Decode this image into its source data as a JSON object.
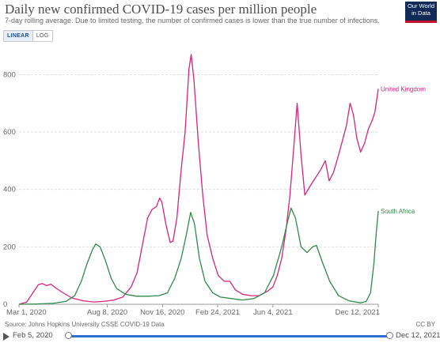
{
  "title": "Daily new confirmed COVID-19 cases per million people",
  "subtitle": "7-day rolling average. Due to limited testing, the number of confirmed cases is lower than the true number of infections.",
  "logo": {
    "line1": "Our World",
    "line2": "in Data"
  },
  "scale_toggle": {
    "linear": "LINEAR",
    "log": "LOG",
    "active": "linear"
  },
  "footer": {
    "source": "Source: Johns Hopkins University CSSE COVID-19 Data",
    "license": "CC BY"
  },
  "timeline": {
    "start_label": "Feb 5, 2020",
    "end_label": "Dec 12, 2021",
    "start_fraction": 0.0,
    "end_fraction": 1.0
  },
  "colors": {
    "uk": "#d6247a",
    "sa": "#2f8a4a",
    "grid": "#dddddd",
    "axis_text": "#666666",
    "timeline": "#2c6fd1"
  },
  "chart_data": {
    "type": "line",
    "x_axis": {
      "type": "date",
      "range": [
        "2020-03-01",
        "2021-12-12"
      ],
      "ticks": [
        "Mar 1, 2020",
        "Aug 8, 2020",
        "Nov 16, 2020",
        "Feb 24, 2021",
        "Jun 4, 2021",
        "Dec 12, 2021"
      ]
    },
    "y_axis": {
      "range": [
        0,
        900
      ],
      "ticks": [
        0,
        200,
        400,
        600,
        800
      ]
    },
    "grid": true,
    "legend": "labels at line ends (right)",
    "series": [
      {
        "name": "United Kingdom",
        "color": "#d6247a",
        "points": [
          [
            "2020-03-01",
            0
          ],
          [
            "2020-03-15",
            8
          ],
          [
            "2020-03-28",
            45
          ],
          [
            "2020-04-05",
            68
          ],
          [
            "2020-04-12",
            72
          ],
          [
            "2020-04-20",
            65
          ],
          [
            "2020-04-28",
            70
          ],
          [
            "2020-05-08",
            55
          ],
          [
            "2020-05-20",
            40
          ],
          [
            "2020-06-05",
            22
          ],
          [
            "2020-06-25",
            12
          ],
          [
            "2020-07-15",
            8
          ],
          [
            "2020-08-01",
            10
          ],
          [
            "2020-08-20",
            15
          ],
          [
            "2020-09-05",
            25
          ],
          [
            "2020-09-20",
            60
          ],
          [
            "2020-10-01",
            110
          ],
          [
            "2020-10-10",
            200
          ],
          [
            "2020-10-20",
            300
          ],
          [
            "2020-10-28",
            330
          ],
          [
            "2020-11-05",
            340
          ],
          [
            "2020-11-11",
            370
          ],
          [
            "2020-11-15",
            355
          ],
          [
            "2020-11-22",
            280
          ],
          [
            "2020-11-30",
            215
          ],
          [
            "2020-12-05",
            220
          ],
          [
            "2020-12-12",
            300
          ],
          [
            "2020-12-20",
            470
          ],
          [
            "2020-12-27",
            600
          ],
          [
            "2021-01-03",
            820
          ],
          [
            "2021-01-07",
            870
          ],
          [
            "2021-01-12",
            780
          ],
          [
            "2021-01-20",
            560
          ],
          [
            "2021-01-28",
            380
          ],
          [
            "2021-02-05",
            240
          ],
          [
            "2021-02-15",
            160
          ],
          [
            "2021-02-25",
            100
          ],
          [
            "2021-03-08",
            80
          ],
          [
            "2021-03-18",
            80
          ],
          [
            "2021-03-28",
            50
          ],
          [
            "2021-04-10",
            35
          ],
          [
            "2021-04-25",
            30
          ],
          [
            "2021-05-10",
            30
          ],
          [
            "2021-05-25",
            45
          ],
          [
            "2021-06-04",
            60
          ],
          [
            "2021-06-12",
            100
          ],
          [
            "2021-06-20",
            160
          ],
          [
            "2021-06-28",
            260
          ],
          [
            "2021-07-05",
            380
          ],
          [
            "2021-07-12",
            550
          ],
          [
            "2021-07-18",
            700
          ],
          [
            "2021-07-25",
            520
          ],
          [
            "2021-08-01",
            380
          ],
          [
            "2021-08-10",
            410
          ],
          [
            "2021-08-20",
            440
          ],
          [
            "2021-08-30",
            470
          ],
          [
            "2021-09-07",
            500
          ],
          [
            "2021-09-14",
            430
          ],
          [
            "2021-09-22",
            460
          ],
          [
            "2021-10-01",
            520
          ],
          [
            "2021-10-08",
            570
          ],
          [
            "2021-10-15",
            620
          ],
          [
            "2021-10-22",
            700
          ],
          [
            "2021-10-28",
            660
          ],
          [
            "2021-11-03",
            580
          ],
          [
            "2021-11-10",
            530
          ],
          [
            "2021-11-17",
            560
          ],
          [
            "2021-11-24",
            610
          ],
          [
            "2021-12-01",
            640
          ],
          [
            "2021-12-06",
            670
          ],
          [
            "2021-12-12",
            750
          ]
        ]
      },
      {
        "name": "South Africa",
        "color": "#2f8a4a",
        "points": [
          [
            "2020-03-01",
            0
          ],
          [
            "2020-04-01",
            1
          ],
          [
            "2020-05-01",
            3
          ],
          [
            "2020-05-25",
            10
          ],
          [
            "2020-06-10",
            30
          ],
          [
            "2020-06-22",
            80
          ],
          [
            "2020-07-02",
            140
          ],
          [
            "2020-07-12",
            190
          ],
          [
            "2020-07-18",
            210
          ],
          [
            "2020-07-26",
            200
          ],
          [
            "2020-08-05",
            150
          ],
          [
            "2020-08-15",
            90
          ],
          [
            "2020-08-25",
            55
          ],
          [
            "2020-09-10",
            35
          ],
          [
            "2020-09-30",
            28
          ],
          [
            "2020-10-20",
            28
          ],
          [
            "2020-11-10",
            30
          ],
          [
            "2020-11-25",
            40
          ],
          [
            "2020-12-08",
            90
          ],
          [
            "2020-12-20",
            160
          ],
          [
            "2020-12-30",
            250
          ],
          [
            "2021-01-06",
            320
          ],
          [
            "2021-01-13",
            280
          ],
          [
            "2021-01-22",
            160
          ],
          [
            "2021-02-01",
            80
          ],
          [
            "2021-02-15",
            40
          ],
          [
            "2021-03-01",
            25
          ],
          [
            "2021-03-20",
            20
          ],
          [
            "2021-04-10",
            15
          ],
          [
            "2021-05-01",
            20
          ],
          [
            "2021-05-20",
            40
          ],
          [
            "2021-06-05",
            100
          ],
          [
            "2021-06-20",
            200
          ],
          [
            "2021-07-01",
            290
          ],
          [
            "2021-07-07",
            335
          ],
          [
            "2021-07-15",
            300
          ],
          [
            "2021-07-25",
            200
          ],
          [
            "2021-08-05",
            180
          ],
          [
            "2021-08-15",
            200
          ],
          [
            "2021-08-22",
            205
          ],
          [
            "2021-09-01",
            150
          ],
          [
            "2021-09-15",
            80
          ],
          [
            "2021-10-01",
            30
          ],
          [
            "2021-10-20",
            12
          ],
          [
            "2021-11-10",
            5
          ],
          [
            "2021-11-20",
            10
          ],
          [
            "2021-11-28",
            40
          ],
          [
            "2021-12-04",
            140
          ],
          [
            "2021-12-08",
            240
          ],
          [
            "2021-12-12",
            325
          ]
        ]
      }
    ]
  }
}
